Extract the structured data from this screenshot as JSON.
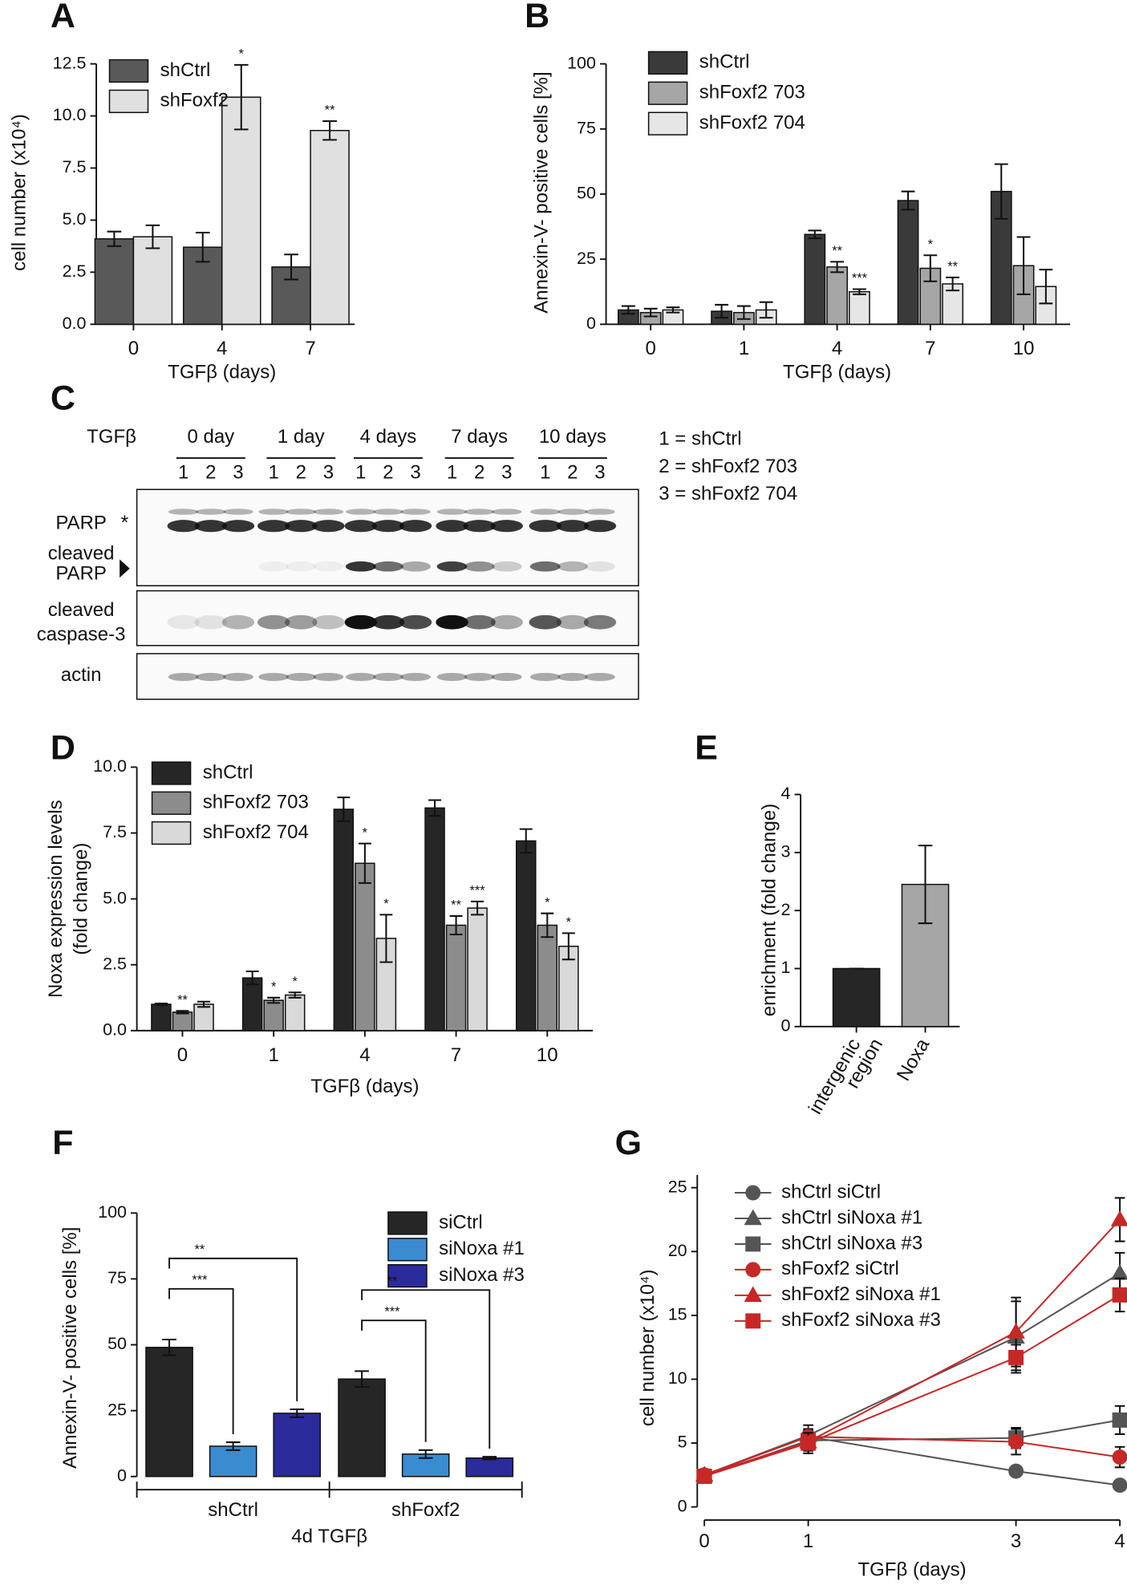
{
  "chart_data": [
    {
      "type": "bar",
      "panel": "A",
      "ylabel": "cell number (x10⁴)",
      "xlabel": "TGFβ (days)",
      "categories": [
        "0",
        "4",
        "7"
      ],
      "series": [
        {
          "name": "shCtrl",
          "color": "#595959",
          "values": [
            4.1,
            3.7,
            2.75
          ],
          "errors": [
            0.35,
            0.7,
            0.6
          ]
        },
        {
          "name": "shFoxf2",
          "color": "#e0e0e0",
          "values": [
            4.2,
            10.9,
            9.3
          ],
          "errors": [
            0.55,
            1.55,
            0.45
          ],
          "significance": [
            null,
            "*",
            "**"
          ]
        }
      ],
      "ylim": [
        0,
        12.5
      ],
      "yticks": [
        {
          "value": 0,
          "label": "0.0"
        },
        {
          "value": 2.5,
          "label": "2.5"
        },
        {
          "value": 5,
          "label": "5.0"
        },
        {
          "value": 7.5,
          "label": "7.5"
        },
        {
          "value": 10,
          "label": "10.0"
        },
        {
          "value": 12.5,
          "label": "12.5"
        }
      ]
    },
    {
      "type": "bar",
      "panel": "B",
      "ylabel": "Annexin-V- positive cells [%]",
      "xlabel": "TGFβ (days)",
      "categories": [
        "0",
        "1",
        "4",
        "7",
        "10"
      ],
      "series": [
        {
          "name": "shCtrl",
          "color": "#3a3a3a",
          "values": [
            5.5,
            5,
            34.5,
            47.5,
            51
          ],
          "errors": [
            1.5,
            2.5,
            1.5,
            3.5,
            10.5
          ]
        },
        {
          "name": "shFoxf2 703",
          "color": "#a6a6a6",
          "values": [
            4.5,
            4.5,
            22,
            21.5,
            22.5
          ],
          "errors": [
            1.5,
            2.5,
            2,
            5,
            11
          ],
          "significance": [
            null,
            null,
            "**",
            "*",
            null
          ]
        },
        {
          "name": "shFoxf2 704",
          "color": "#e6e6e6",
          "values": [
            5.5,
            5.5,
            12.5,
            15.5,
            14.5
          ],
          "errors": [
            1,
            3,
            1,
            2.5,
            6.5
          ],
          "significance": [
            null,
            null,
            "***",
            "**",
            null
          ]
        }
      ],
      "ylim": [
        0,
        100
      ],
      "yticks": [
        0,
        25,
        50,
        75,
        100
      ]
    },
    {
      "type": "bar",
      "panel": "D",
      "ylabel": [
        "Noxa expression levels",
        "(fold change)"
      ],
      "xlabel": "TGFβ (days)",
      "categories": [
        "0",
        "1",
        "4",
        "7",
        "10"
      ],
      "series": [
        {
          "name": "shCtrl",
          "color": "#262626",
          "values": [
            1,
            2,
            8.4,
            8.45,
            7.2
          ],
          "errors": [
            0.03,
            0.25,
            0.45,
            0.3,
            0.45
          ]
        },
        {
          "name": "shFoxf2 703",
          "color": "#8c8c8c",
          "values": [
            0.7,
            1.15,
            6.35,
            4,
            4
          ],
          "errors": [
            0.05,
            0.1,
            0.75,
            0.35,
            0.45
          ],
          "significance": [
            "**",
            "*",
            "*",
            "**",
            "*"
          ]
        },
        {
          "name": "shFoxf2 704",
          "color": "#d9d9d9",
          "values": [
            1,
            1.35,
            3.5,
            4.65,
            3.2
          ],
          "errors": [
            0.1,
            0.1,
            0.9,
            0.25,
            0.5
          ],
          "significance": [
            null,
            "*",
            "*",
            "***",
            "*"
          ]
        }
      ],
      "ylim": [
        0,
        10
      ],
      "yticks": [
        {
          "value": 0,
          "label": "0.0"
        },
        {
          "value": 2.5,
          "label": "2.5"
        },
        {
          "value": 5,
          "label": "5.0"
        },
        {
          "value": 7.5,
          "label": "7.5"
        },
        {
          "value": 10,
          "label": "10.0"
        }
      ]
    },
    {
      "type": "bar",
      "panel": "E",
      "ylabel": "enrichment (fold change)",
      "categories": [
        [
          "intergenic",
          "region"
        ],
        [
          "Noxa"
        ]
      ],
      "values": [
        1,
        2.45
      ],
      "errors": [
        0,
        0.67
      ],
      "colors": [
        "#262626",
        "#a6a6a6"
      ],
      "ylim": [
        0,
        4
      ],
      "yticks": [
        0,
        1,
        2,
        3,
        4
      ]
    },
    {
      "type": "bar",
      "panel": "F",
      "ylabel": "Annexin-V- positive cells [%]",
      "xlabel": "4d TGFβ",
      "categories": [
        "shCtrl",
        "shFoxf2"
      ],
      "series": [
        {
          "name": "siCtrl",
          "color": "#262626",
          "values": [
            49,
            37
          ],
          "errors": [
            3,
            3
          ]
        },
        {
          "name": "siNoxa #1",
          "color": "#3b8bd0",
          "values": [
            11.5,
            8.5
          ],
          "errors": [
            1.5,
            1.5
          ]
        },
        {
          "name": "siNoxa #3",
          "color": "#2b2b9c",
          "values": [
            24,
            7
          ],
          "errors": [
            1.5,
            0.5
          ]
        }
      ],
      "brackets": [
        "***",
        "**",
        "***",
        "**"
      ],
      "ylim": [
        0,
        100
      ],
      "yticks": [
        0,
        25,
        50,
        75,
        100
      ]
    },
    {
      "type": "line",
      "panel": "G",
      "ylabel": "cell number (x10⁴)",
      "xlabel": "TGFβ (days)",
      "x": [
        0,
        1,
        3,
        4
      ],
      "series": [
        {
          "name": "shCtrl siCtrl",
          "color": "#555555",
          "marker": "circle",
          "values": [
            2.5,
            5.5,
            2.8,
            1.7
          ],
          "errors": [
            0.3,
            0.5,
            0.3,
            0.3
          ]
        },
        {
          "name": "shCtrl siNoxa #1",
          "color": "#555555",
          "marker": "triangle",
          "values": [
            2.5,
            5.6,
            13.3,
            18.3
          ],
          "errors": [
            0.3,
            0.8,
            2.8,
            1.6
          ]
        },
        {
          "name": "shCtrl siNoxa #3",
          "color": "#555555",
          "marker": "square",
          "values": [
            2.4,
            5.2,
            5.4,
            6.8
          ],
          "errors": [
            0.3,
            0.8,
            0.8,
            1.1
          ]
        },
        {
          "name": "shFoxf2 siCtrl",
          "color": "#c62828",
          "marker": "circle",
          "values": [
            2.5,
            5.5,
            5.1,
            3.9
          ],
          "errors": [
            0.3,
            0.6,
            1,
            0.8
          ]
        },
        {
          "name": "shFoxf2 siNoxa #1",
          "color": "#c62828",
          "marker": "triangle",
          "values": [
            2.5,
            5.1,
            13.7,
            22.5
          ],
          "errors": [
            0.3,
            0.7,
            2.7,
            1.7
          ]
        },
        {
          "name": "shFoxf2 siNoxa #3",
          "color": "#c62828",
          "marker": "square",
          "values": [
            2.4,
            5,
            11.7,
            16.6
          ],
          "errors": [
            0.3,
            0.8,
            1,
            1.3
          ]
        }
      ],
      "xlim": [
        0,
        4
      ],
      "xticks": [
        0,
        1,
        3,
        4
      ],
      "ylim": [
        0,
        26
      ],
      "yticks": [
        0,
        5,
        10,
        15,
        20,
        25
      ]
    }
  ],
  "blot": {
    "panel": "C",
    "treatment": "TGFβ",
    "timepoints": [
      "0 day",
      "1 day",
      "4 days",
      "7 days",
      "10 days"
    ],
    "lanes": [
      "1",
      "2",
      "3"
    ],
    "key": [
      "1 = shCtrl",
      "2 = shFoxf2 703",
      "3 = shFoxf2 704"
    ],
    "rows": [
      {
        "label": [
          "PARP"
        ],
        "marker": "*"
      },
      {
        "label": [
          "cleaved",
          "PARP"
        ]
      },
      {
        "label": [
          "cleaved",
          "caspase-3"
        ]
      },
      {
        "label": [
          "actin"
        ]
      }
    ]
  }
}
